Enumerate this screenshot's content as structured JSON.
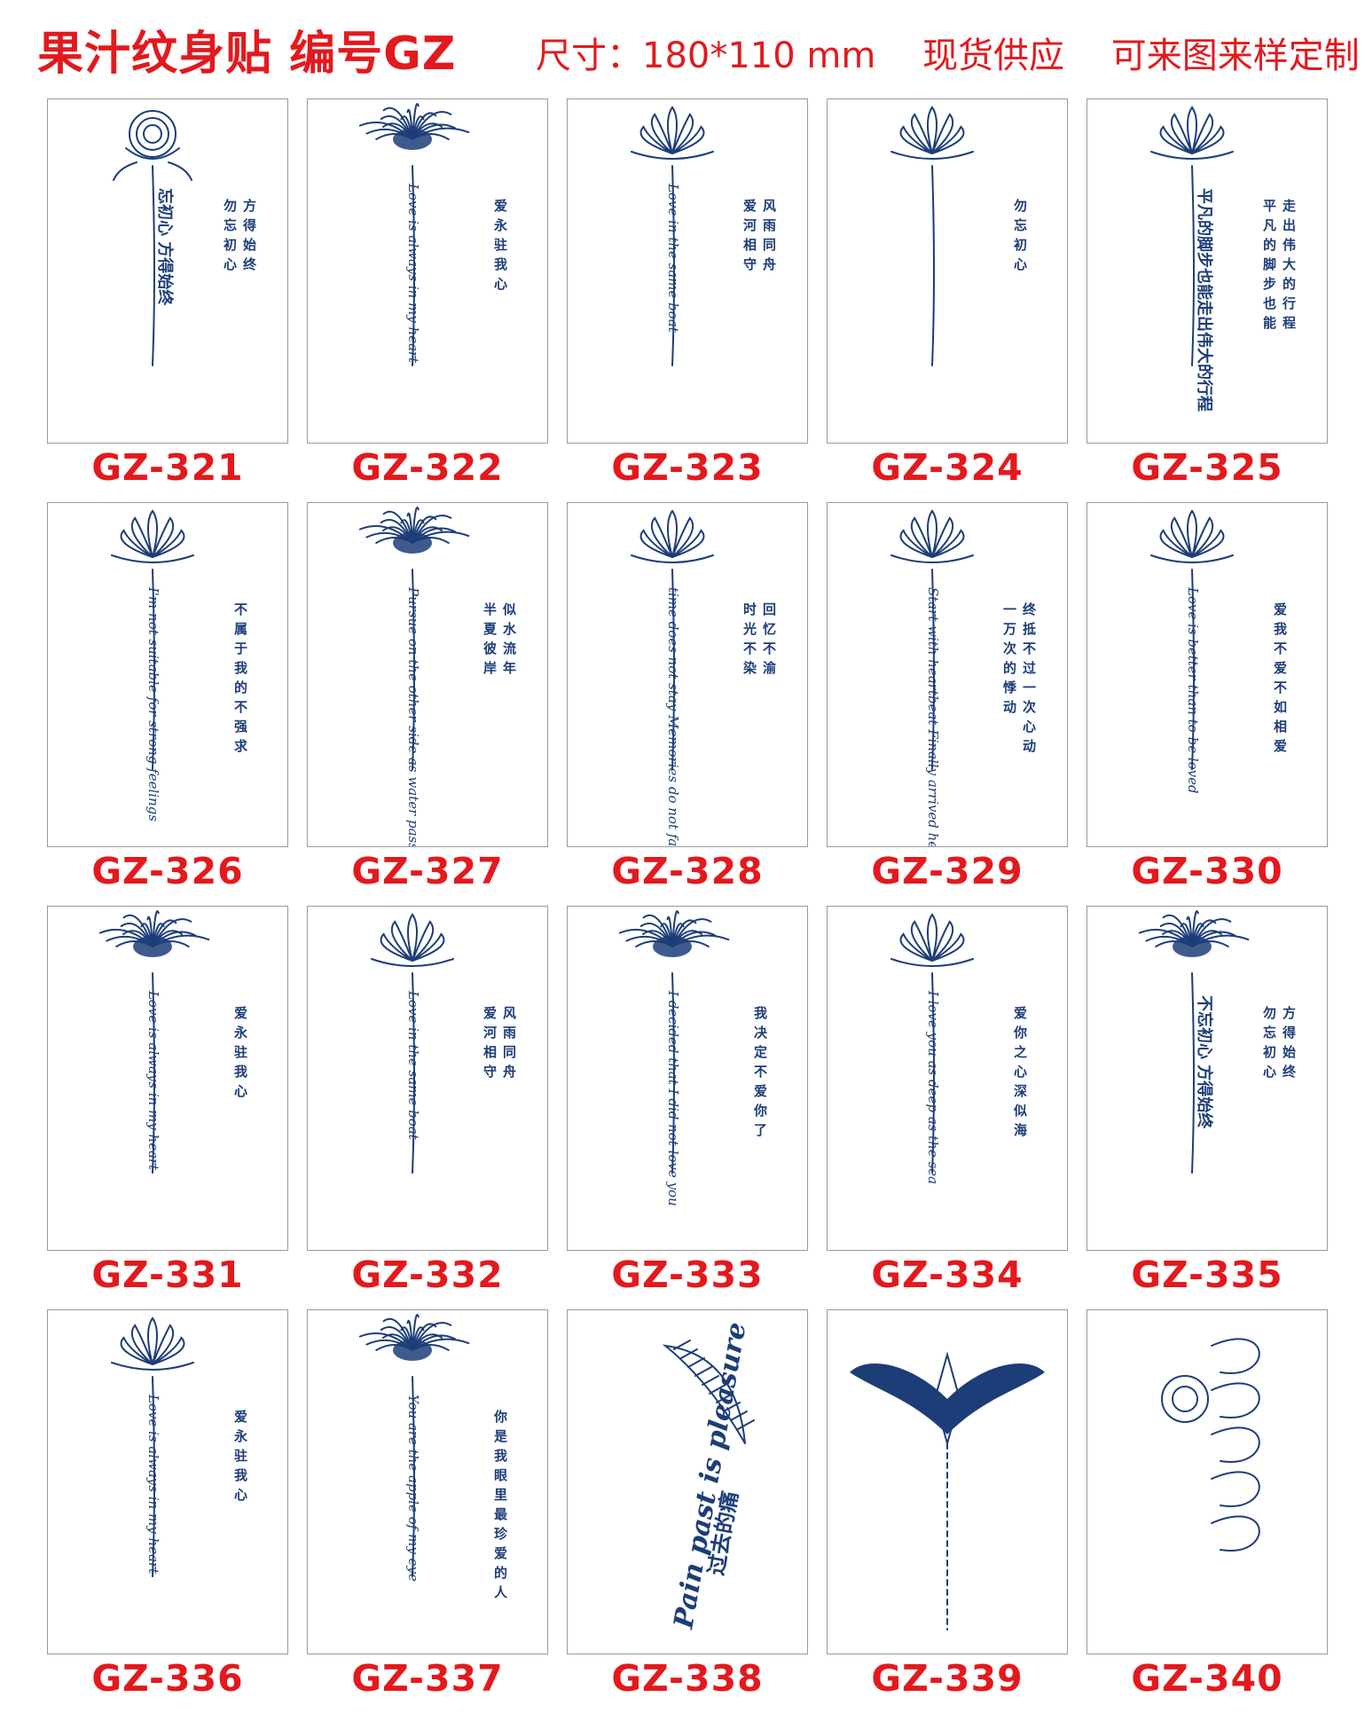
{
  "header": {
    "title": "果汁纹身贴 编号GZ",
    "size": "尺寸：180*110 mm",
    "stock": "现货供应",
    "custom": "可来图来样定制"
  },
  "ink_color": "#1d3d78",
  "accent_color": "#e3191d",
  "products": [
    {
      "code": "GZ-321",
      "motif": "rose-icon",
      "script": "",
      "cn": [
        "勿忘初心",
        "方得始终"
      ],
      "cn_script": "忘初心 方得始终"
    },
    {
      "code": "GZ-322",
      "motif": "spider-lily-icon",
      "script": "Love is always in my heart",
      "cn": [
        "爱永驻我心"
      ],
      "cn_script": ""
    },
    {
      "code": "GZ-323",
      "motif": "lotus-icon",
      "script": "Love in the same boat",
      "cn": [
        "爱河相守",
        "风雨同舟"
      ],
      "cn_script": ""
    },
    {
      "code": "GZ-324",
      "motif": "lotus-icon",
      "script": "",
      "cn": [
        "勿忘初心"
      ],
      "cn_script": ""
    },
    {
      "code": "GZ-325",
      "motif": "lotus-icon",
      "script": "",
      "cn": [
        "平凡的脚步也能",
        "走出伟大的行程"
      ],
      "cn_script": "平凡的脚步也能走出伟大的行程"
    },
    {
      "code": "GZ-326",
      "motif": "lotus-icon",
      "script": "I'm not suitable for strong feelings",
      "cn": [
        "不属于我的不强求"
      ],
      "cn_script": ""
    },
    {
      "code": "GZ-327",
      "motif": "spider-lily-icon",
      "script": "Pursue on the other side as water passes",
      "cn": [
        "半夏彼岸",
        "似水流年"
      ],
      "cn_script": ""
    },
    {
      "code": "GZ-328",
      "motif": "lotus-icon",
      "script": "time does not stay Memories do not fade",
      "cn": [
        "时光不染",
        "回忆不渝"
      ],
      "cn_script": ""
    },
    {
      "code": "GZ-329",
      "motif": "lotus-icon",
      "script": "Start with heartbeat Finally arrived heartbeat",
      "cn": [
        "一万次的悸动",
        "终抵不过一次心动"
      ],
      "cn_script": ""
    },
    {
      "code": "GZ-330",
      "motif": "lotus-icon",
      "script": "Love is better than to be loved",
      "cn": [
        "爱我不爱不如相爱"
      ],
      "cn_script": ""
    },
    {
      "code": "GZ-331",
      "motif": "spider-lily-icon",
      "script": "Love is always in my heart",
      "cn": [
        "爱永驻我心"
      ],
      "cn_script": ""
    },
    {
      "code": "GZ-332",
      "motif": "lotus-icon",
      "script": "Love in the same boat",
      "cn": [
        "爱河相守",
        "风雨同舟"
      ],
      "cn_script": ""
    },
    {
      "code": "GZ-333",
      "motif": "spider-lily-icon",
      "script": "I decided that I did not love you",
      "cn": [
        "我决定不爱你了"
      ],
      "cn_script": ""
    },
    {
      "code": "GZ-334",
      "motif": "lotus-icon",
      "script": "I love you as deep as the sea",
      "cn": [
        "爱你之心深似海"
      ],
      "cn_script": ""
    },
    {
      "code": "GZ-335",
      "motif": "spider-lily-icon",
      "script": "",
      "cn": [
        "勿忘初心",
        "方得始终"
      ],
      "cn_script": "不忘初心 方得始终"
    },
    {
      "code": "GZ-336",
      "motif": "lotus-icon",
      "script": "Love is always in my heart",
      "cn": [
        "爱永驻我心"
      ],
      "cn_script": ""
    },
    {
      "code": "GZ-337",
      "motif": "spider-lily-icon",
      "script": "You are the apple of my eye",
      "cn": [
        "你是我眼里最珍爱的人"
      ],
      "cn_script": ""
    },
    {
      "code": "GZ-338",
      "motif": "feather-icon",
      "script": "Pain past is pleasure",
      "cn": [
        "过去的痛"
      ],
      "cn_script": ""
    },
    {
      "code": "GZ-339",
      "motif": "tribal-wing-icon",
      "script": "",
      "cn": [],
      "cn_script": ""
    },
    {
      "code": "GZ-340",
      "motif": "rose-lettering-icon",
      "script": "",
      "cn": [],
      "cn_script": ""
    }
  ]
}
